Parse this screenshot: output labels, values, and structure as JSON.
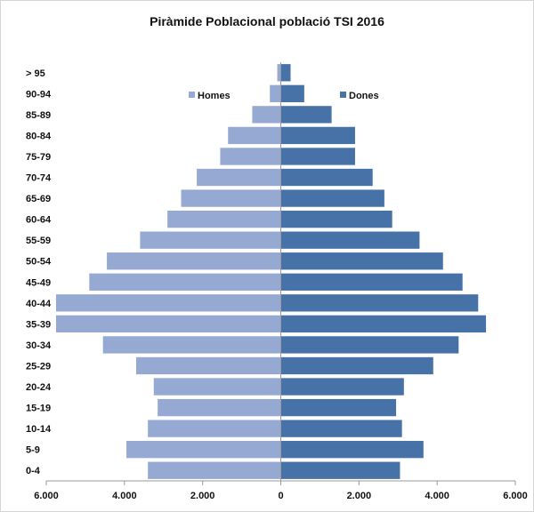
{
  "chart_data": {
    "type": "bar",
    "orientation": "horizontal-population-pyramid",
    "title": "Piràmide Poblacional població TSI 2016",
    "categories": [
      "0-4",
      "5-9",
      "10-14",
      "15-19",
      "20-24",
      "25-29",
      "30-34",
      "35-39",
      "40-44",
      "45-49",
      "50-54",
      "55-59",
      "60-64",
      "65-69",
      "70-74",
      "75-79",
      "80-84",
      "85-89",
      "90-94",
      "> 95"
    ],
    "series": [
      {
        "name": "Homes",
        "color": "#95a9d2",
        "side": "left",
        "values": [
          3400,
          3950,
          3400,
          3150,
          3250,
          3700,
          4550,
          5750,
          5750,
          4900,
          4450,
          3600,
          2900,
          2550,
          2150,
          1550,
          1350,
          730,
          280,
          90
        ]
      },
      {
        "name": "Dones",
        "color": "#4672a8",
        "side": "right",
        "values": [
          3050,
          3650,
          3100,
          2950,
          3150,
          3900,
          4550,
          5250,
          5050,
          4650,
          4150,
          3550,
          2850,
          2650,
          2350,
          1900,
          1900,
          1300,
          600,
          250
        ]
      }
    ],
    "xlim": [
      -6000,
      6000
    ],
    "x_ticks": [
      -6000,
      -4000,
      -2000,
      0,
      2000,
      4000,
      6000
    ],
    "x_tick_labels": [
      "6.000",
      "4.000",
      "2.000",
      "0",
      "2.000",
      "4.000",
      "6.000"
    ],
    "grid": false,
    "legend": "top, split left/right of center"
  }
}
